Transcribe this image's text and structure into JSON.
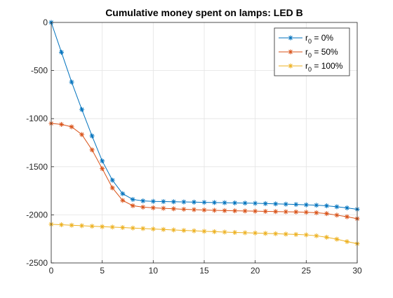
{
  "chart_data": {
    "type": "line",
    "title": "Cumulative money spent on lamps: LED B",
    "xlabel": "",
    "ylabel": "",
    "xlim": [
      0,
      30
    ],
    "ylim": [
      -2500,
      0
    ],
    "xticks": [
      0,
      5,
      10,
      15,
      20,
      25,
      30
    ],
    "yticks": [
      0,
      -500,
      -1000,
      -1500,
      -2000,
      -2500
    ],
    "grid": true,
    "legend_position": "top-right",
    "x": [
      0,
      1,
      2,
      3,
      4,
      5,
      6,
      7,
      8,
      9,
      10,
      11,
      12,
      13,
      14,
      15,
      16,
      17,
      18,
      19,
      20,
      21,
      22,
      23,
      24,
      25,
      26,
      27,
      28,
      29,
      30
    ],
    "series": [
      {
        "name_base": "r",
        "name_sub": "0",
        "name_rest": " = 0%",
        "color": "#0072BD",
        "marker": "asterisk",
        "values": [
          0,
          -310,
          -620,
          -905,
          -1180,
          -1440,
          -1640,
          -1780,
          -1840,
          -1855,
          -1860,
          -1862,
          -1864,
          -1866,
          -1868,
          -1870,
          -1872,
          -1874,
          -1876,
          -1878,
          -1880,
          -1883,
          -1886,
          -1889,
          -1892,
          -1896,
          -1900,
          -1906,
          -1916,
          -1928,
          -1942
        ]
      },
      {
        "name_base": "r",
        "name_sub": "0",
        "name_rest": " = 50%",
        "color": "#D95319",
        "marker": "asterisk",
        "values": [
          -1050,
          -1060,
          -1085,
          -1165,
          -1325,
          -1520,
          -1720,
          -1850,
          -1905,
          -1920,
          -1927,
          -1932,
          -1937,
          -1942,
          -1946,
          -1950,
          -1953,
          -1956,
          -1958,
          -1960,
          -1962,
          -1964,
          -1966,
          -1968,
          -1970,
          -1973,
          -1978,
          -1987,
          -2003,
          -2020,
          -2040
        ]
      },
      {
        "name_base": "r",
        "name_sub": "0",
        "name_rest": " = 100%",
        "color": "#EDB120",
        "marker": "asterisk",
        "values": [
          -2098,
          -2103,
          -2108,
          -2113,
          -2118,
          -2123,
          -2127,
          -2132,
          -2137,
          -2142,
          -2147,
          -2152,
          -2157,
          -2162,
          -2166,
          -2171,
          -2175,
          -2179,
          -2183,
          -2186,
          -2189,
          -2193,
          -2196,
          -2200,
          -2204,
          -2208,
          -2218,
          -2233,
          -2253,
          -2278,
          -2300
        ]
      }
    ]
  }
}
